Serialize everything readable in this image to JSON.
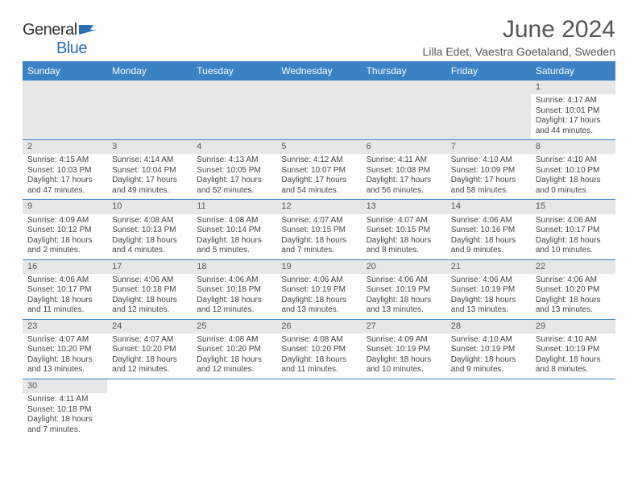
{
  "logo": {
    "text_general": "General",
    "text_blue": "Blue"
  },
  "title": "June 2024",
  "location": "Lilla Edet, Vaestra Goetaland, Sweden",
  "colors": {
    "header_bg": "#3b82c4",
    "header_text": "#ffffff",
    "daynum_bg": "#e7e7e7",
    "cell_border": "#3b82c4",
    "logo_blue": "#2a6eb8",
    "text": "#444444"
  },
  "weekdays": [
    "Sunday",
    "Monday",
    "Tuesday",
    "Wednesday",
    "Thursday",
    "Friday",
    "Saturday"
  ],
  "weeks": [
    [
      null,
      null,
      null,
      null,
      null,
      null,
      {
        "n": "1",
        "sunrise": "Sunrise: 4:17 AM",
        "sunset": "Sunset: 10:01 PM",
        "daylight": "Daylight: 17 hours and 44 minutes."
      }
    ],
    [
      {
        "n": "2",
        "sunrise": "Sunrise: 4:15 AM",
        "sunset": "Sunset: 10:03 PM",
        "daylight": "Daylight: 17 hours and 47 minutes."
      },
      {
        "n": "3",
        "sunrise": "Sunrise: 4:14 AM",
        "sunset": "Sunset: 10:04 PM",
        "daylight": "Daylight: 17 hours and 49 minutes."
      },
      {
        "n": "4",
        "sunrise": "Sunrise: 4:13 AM",
        "sunset": "Sunset: 10:05 PM",
        "daylight": "Daylight: 17 hours and 52 minutes."
      },
      {
        "n": "5",
        "sunrise": "Sunrise: 4:12 AM",
        "sunset": "Sunset: 10:07 PM",
        "daylight": "Daylight: 17 hours and 54 minutes."
      },
      {
        "n": "6",
        "sunrise": "Sunrise: 4:11 AM",
        "sunset": "Sunset: 10:08 PM",
        "daylight": "Daylight: 17 hours and 56 minutes."
      },
      {
        "n": "7",
        "sunrise": "Sunrise: 4:10 AM",
        "sunset": "Sunset: 10:09 PM",
        "daylight": "Daylight: 17 hours and 58 minutes."
      },
      {
        "n": "8",
        "sunrise": "Sunrise: 4:10 AM",
        "sunset": "Sunset: 10:10 PM",
        "daylight": "Daylight: 18 hours and 0 minutes."
      }
    ],
    [
      {
        "n": "9",
        "sunrise": "Sunrise: 4:09 AM",
        "sunset": "Sunset: 10:12 PM",
        "daylight": "Daylight: 18 hours and 2 minutes."
      },
      {
        "n": "10",
        "sunrise": "Sunrise: 4:08 AM",
        "sunset": "Sunset: 10:13 PM",
        "daylight": "Daylight: 18 hours and 4 minutes."
      },
      {
        "n": "11",
        "sunrise": "Sunrise: 4:08 AM",
        "sunset": "Sunset: 10:14 PM",
        "daylight": "Daylight: 18 hours and 5 minutes."
      },
      {
        "n": "12",
        "sunrise": "Sunrise: 4:07 AM",
        "sunset": "Sunset: 10:15 PM",
        "daylight": "Daylight: 18 hours and 7 minutes."
      },
      {
        "n": "13",
        "sunrise": "Sunrise: 4:07 AM",
        "sunset": "Sunset: 10:15 PM",
        "daylight": "Daylight: 18 hours and 8 minutes."
      },
      {
        "n": "14",
        "sunrise": "Sunrise: 4:06 AM",
        "sunset": "Sunset: 10:16 PM",
        "daylight": "Daylight: 18 hours and 9 minutes."
      },
      {
        "n": "15",
        "sunrise": "Sunrise: 4:06 AM",
        "sunset": "Sunset: 10:17 PM",
        "daylight": "Daylight: 18 hours and 10 minutes."
      }
    ],
    [
      {
        "n": "16",
        "sunrise": "Sunrise: 4:06 AM",
        "sunset": "Sunset: 10:17 PM",
        "daylight": "Daylight: 18 hours and 11 minutes."
      },
      {
        "n": "17",
        "sunrise": "Sunrise: 4:06 AM",
        "sunset": "Sunset: 10:18 PM",
        "daylight": "Daylight: 18 hours and 12 minutes."
      },
      {
        "n": "18",
        "sunrise": "Sunrise: 4:06 AM",
        "sunset": "Sunset: 10:18 PM",
        "daylight": "Daylight: 18 hours and 12 minutes."
      },
      {
        "n": "19",
        "sunrise": "Sunrise: 4:06 AM",
        "sunset": "Sunset: 10:19 PM",
        "daylight": "Daylight: 18 hours and 13 minutes."
      },
      {
        "n": "20",
        "sunrise": "Sunrise: 4:06 AM",
        "sunset": "Sunset: 10:19 PM",
        "daylight": "Daylight: 18 hours and 13 minutes."
      },
      {
        "n": "21",
        "sunrise": "Sunrise: 4:06 AM",
        "sunset": "Sunset: 10:19 PM",
        "daylight": "Daylight: 18 hours and 13 minutes."
      },
      {
        "n": "22",
        "sunrise": "Sunrise: 4:06 AM",
        "sunset": "Sunset: 10:20 PM",
        "daylight": "Daylight: 18 hours and 13 minutes."
      }
    ],
    [
      {
        "n": "23",
        "sunrise": "Sunrise: 4:07 AM",
        "sunset": "Sunset: 10:20 PM",
        "daylight": "Daylight: 18 hours and 13 minutes."
      },
      {
        "n": "24",
        "sunrise": "Sunrise: 4:07 AM",
        "sunset": "Sunset: 10:20 PM",
        "daylight": "Daylight: 18 hours and 12 minutes."
      },
      {
        "n": "25",
        "sunrise": "Sunrise: 4:08 AM",
        "sunset": "Sunset: 10:20 PM",
        "daylight": "Daylight: 18 hours and 12 minutes."
      },
      {
        "n": "26",
        "sunrise": "Sunrise: 4:08 AM",
        "sunset": "Sunset: 10:20 PM",
        "daylight": "Daylight: 18 hours and 11 minutes."
      },
      {
        "n": "27",
        "sunrise": "Sunrise: 4:09 AM",
        "sunset": "Sunset: 10:19 PM",
        "daylight": "Daylight: 18 hours and 10 minutes."
      },
      {
        "n": "28",
        "sunrise": "Sunrise: 4:10 AM",
        "sunset": "Sunset: 10:19 PM",
        "daylight": "Daylight: 18 hours and 9 minutes."
      },
      {
        "n": "29",
        "sunrise": "Sunrise: 4:10 AM",
        "sunset": "Sunset: 10:19 PM",
        "daylight": "Daylight: 18 hours and 8 minutes."
      }
    ],
    [
      {
        "n": "30",
        "sunrise": "Sunrise: 4:11 AM",
        "sunset": "Sunset: 10:18 PM",
        "daylight": "Daylight: 18 hours and 7 minutes."
      },
      null,
      null,
      null,
      null,
      null,
      null
    ]
  ]
}
